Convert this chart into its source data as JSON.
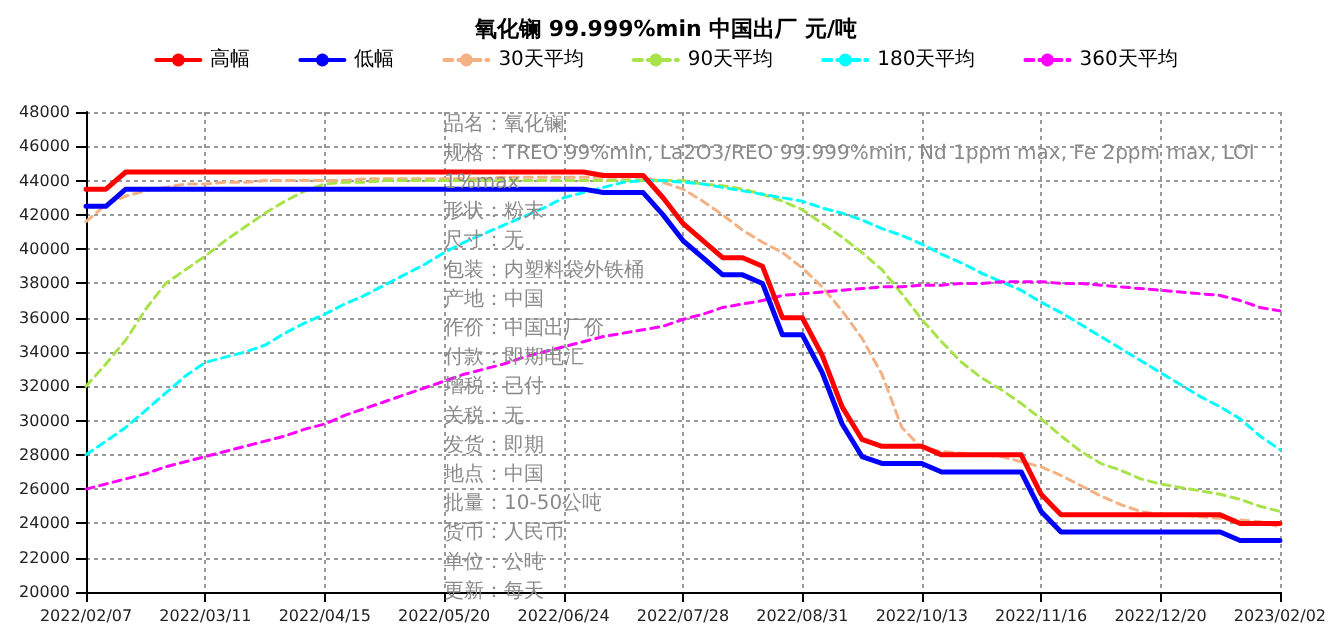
{
  "chart_data": {
    "type": "line",
    "title": "氧化镧 99.999%min 中国出厂 元/吨",
    "categories": [
      "2022/02/07",
      null,
      null,
      null,
      null,
      null,
      "2022/03/11",
      null,
      null,
      null,
      null,
      null,
      "2022/04/15",
      null,
      null,
      null,
      null,
      null,
      "2022/05/20",
      null,
      null,
      null,
      null,
      null,
      "2022/06/24",
      null,
      null,
      null,
      null,
      null,
      "2022/07/28",
      null,
      null,
      null,
      null,
      null,
      "2022/08/31",
      null,
      null,
      null,
      null,
      null,
      "2022/10/13",
      null,
      null,
      null,
      null,
      null,
      "2022/11/16",
      null,
      null,
      null,
      null,
      null,
      "2022/12/20",
      null,
      null,
      null,
      null,
      null,
      "2023/02/02"
    ],
    "ylim": [
      20000,
      48000
    ],
    "yticks": [
      20000,
      22000,
      24000,
      26000,
      28000,
      30000,
      32000,
      34000,
      36000,
      38000,
      40000,
      42000,
      44000,
      46000,
      48000
    ],
    "grid": true,
    "legend": "top",
    "marker": "none",
    "annotations": [
      "品名：氧化镧",
      "规格：TREO 99%min, La2O3/REO 99.999%min, Nd 1ppm max, Fe 2ppm max, LOI 1%max",
      "形状：粉末",
      "尺寸：无",
      "包装：内塑料袋外铁桶",
      "产地：中国",
      "作价：中国出厂价",
      "付款：即期电汇",
      "增税：已付",
      "关税：无",
      "发货：即期",
      "地点：中国",
      "批量：10-50公吨",
      "货币：人民币",
      "单位：公吨",
      "更新：每天"
    ],
    "series": [
      {
        "name": "高幅",
        "color": "#ff0000",
        "line_style": "solid",
        "values": [
          43500,
          43500,
          44500,
          44500,
          44500,
          44500,
          44500,
          44500,
          44500,
          44500,
          44500,
          44500,
          44500,
          44500,
          44500,
          44500,
          44500,
          44500,
          44500,
          44500,
          44500,
          44500,
          44500,
          44500,
          44500,
          44500,
          44300,
          44300,
          44300,
          43000,
          41500,
          40500,
          39500,
          39500,
          39000,
          36000,
          36000,
          33800,
          30800,
          28900,
          28500,
          28500,
          28500,
          28000,
          28000,
          28000,
          28000,
          28000,
          25700,
          24500,
          24500,
          24500,
          24500,
          24500,
          24500,
          24500,
          24500,
          24500,
          24000,
          24000,
          24000
        ]
      },
      {
        "name": "低幅",
        "color": "#0000ff",
        "line_style": "solid",
        "values": [
          42500,
          42500,
          43500,
          43500,
          43500,
          43500,
          43500,
          43500,
          43500,
          43500,
          43500,
          43500,
          43500,
          43500,
          43500,
          43500,
          43500,
          43500,
          43500,
          43500,
          43500,
          43500,
          43500,
          43500,
          43500,
          43500,
          43300,
          43300,
          43300,
          42000,
          40500,
          39500,
          38500,
          38500,
          38000,
          35000,
          35000,
          32800,
          29800,
          27900,
          27500,
          27500,
          27500,
          27000,
          27000,
          27000,
          27000,
          27000,
          24700,
          23500,
          23500,
          23500,
          23500,
          23500,
          23500,
          23500,
          23500,
          23500,
          23000,
          23000,
          23000
        ]
      },
      {
        "name": "30天平均",
        "color": "#f4b183",
        "line_style": "dashed",
        "values": [
          41600,
          42600,
          43100,
          43400,
          43600,
          43800,
          43800,
          43900,
          43900,
          44000,
          44000,
          44000,
          44000,
          44000,
          44100,
          44100,
          44100,
          44100,
          44100,
          44100,
          44100,
          44200,
          44200,
          44200,
          44200,
          44200,
          44200,
          44200,
          44200,
          43900,
          43500,
          42800,
          42000,
          41100,
          40400,
          39800,
          38900,
          37800,
          36400,
          34800,
          32700,
          29600,
          28400,
          28200,
          28100,
          28000,
          27900,
          27600,
          27300,
          26800,
          26200,
          25600,
          25100,
          24700,
          24500,
          24500,
          24400,
          24300,
          24200,
          24100,
          23800
        ]
      },
      {
        "name": "90天平均",
        "color": "#a9e34b",
        "line_style": "dashed",
        "values": [
          32000,
          33300,
          34700,
          36500,
          38000,
          38800,
          39600,
          40500,
          41300,
          42100,
          42800,
          43400,
          43800,
          43900,
          43900,
          44000,
          44000,
          44000,
          44000,
          44000,
          44000,
          44000,
          44000,
          44000,
          44000,
          44000,
          44000,
          44000,
          44000,
          44000,
          44000,
          43800,
          43700,
          43500,
          43200,
          42800,
          42300,
          41500,
          40700,
          39800,
          38800,
          37400,
          35900,
          34600,
          33400,
          32500,
          31800,
          31000,
          30100,
          29100,
          28200,
          27500,
          27100,
          26600,
          26300,
          26100,
          25900,
          25700,
          25400,
          25000,
          24700
        ]
      },
      {
        "name": "180天平均",
        "color": "#00ffff",
        "line_style": "dashed",
        "values": [
          28000,
          28800,
          29600,
          30600,
          31600,
          32600,
          33400,
          33700,
          34000,
          34400,
          35100,
          35700,
          36200,
          36800,
          37300,
          37900,
          38500,
          39100,
          39800,
          40400,
          40900,
          41400,
          41900,
          42400,
          43000,
          43300,
          43600,
          43900,
          44000,
          44000,
          43900,
          43800,
          43600,
          43400,
          43200,
          43000,
          42800,
          42400,
          42100,
          41700,
          41200,
          40800,
          40300,
          39700,
          39200,
          38600,
          38100,
          37600,
          36900,
          36300,
          35600,
          34900,
          34200,
          33500,
          32800,
          32100,
          31400,
          30800,
          30100,
          29100,
          28300
        ]
      },
      {
        "name": "360天平均",
        "color": "#ff00ff",
        "line_style": "dashed",
        "values": [
          26000,
          26300,
          26600,
          26900,
          27300,
          27600,
          27900,
          28200,
          28500,
          28800,
          29100,
          29500,
          29800,
          30300,
          30700,
          31100,
          31500,
          31900,
          32300,
          32700,
          33000,
          33300,
          33700,
          34000,
          34300,
          34600,
          34900,
          35100,
          35300,
          35500,
          35900,
          36200,
          36600,
          36800,
          37000,
          37300,
          37400,
          37500,
          37600,
          37700,
          37800,
          37800,
          37900,
          37900,
          38000,
          38000,
          38100,
          38100,
          38100,
          38000,
          38000,
          37900,
          37800,
          37700,
          37600,
          37500,
          37400,
          37300,
          37000,
          36600,
          36400
        ]
      }
    ]
  }
}
